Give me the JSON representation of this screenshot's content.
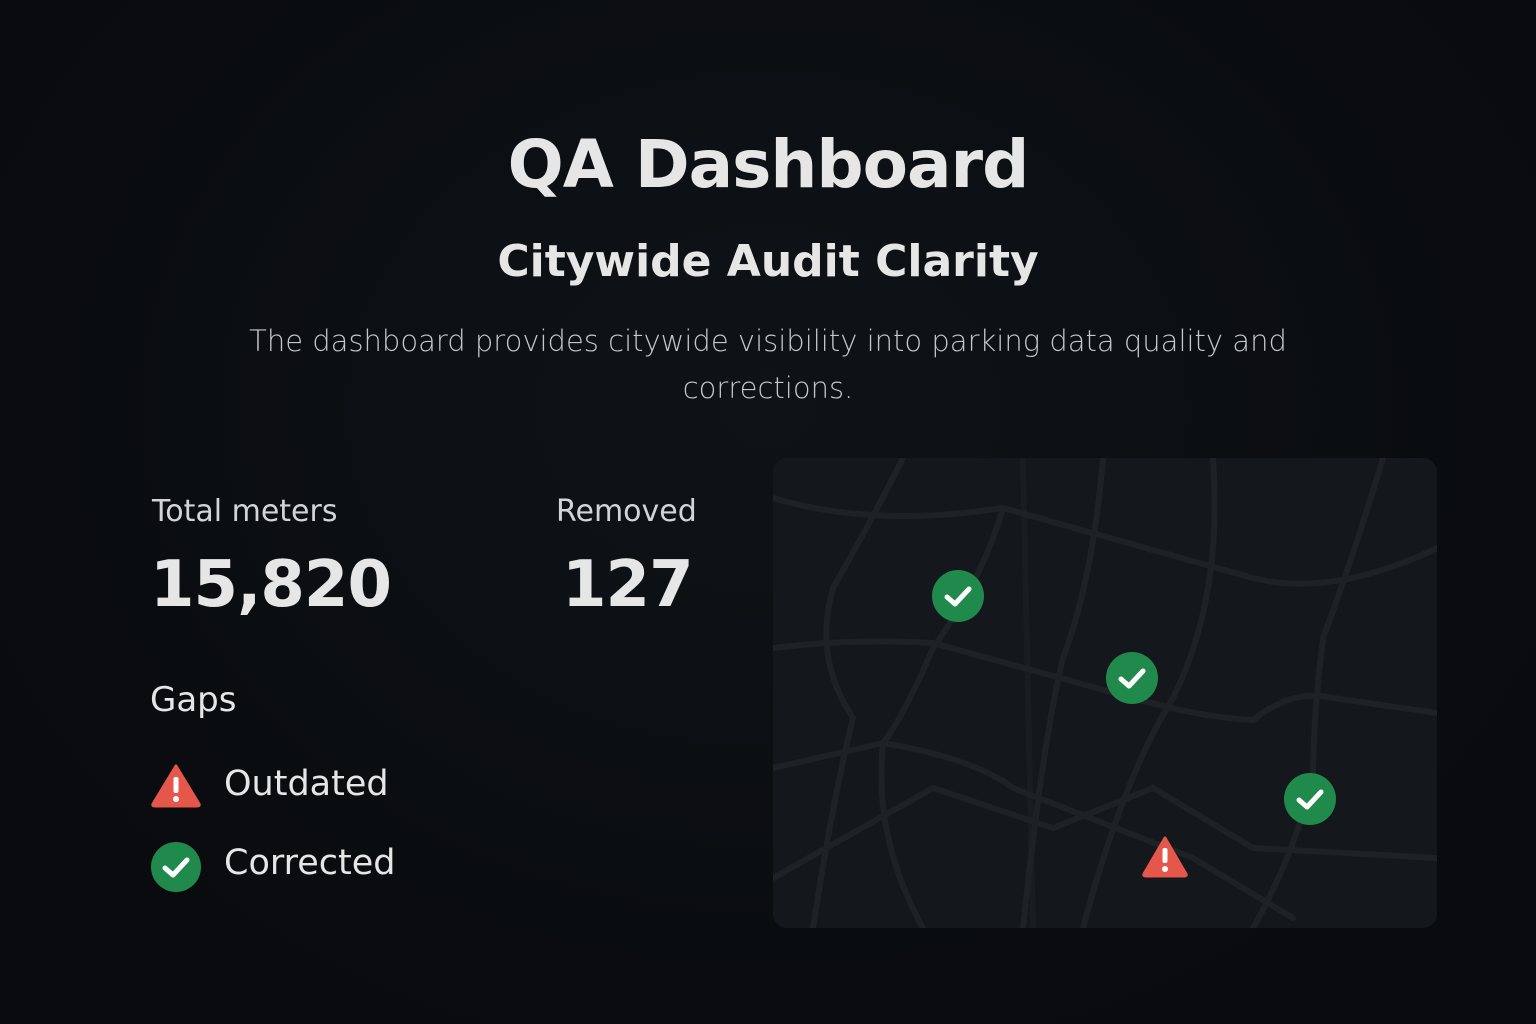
{
  "header": {
    "title": "QA Dashboard",
    "subtitle": "Citywide Audit Clarity",
    "description": "The dashboard provides citywide visibility into parking data quality and corrections."
  },
  "stats": [
    {
      "label": "Total meters",
      "value": "15,820"
    },
    {
      "label": "Removed",
      "value": "127"
    }
  ],
  "gaps": {
    "title": "Gaps",
    "items": [
      {
        "label": "Outdated"
      },
      {
        "label": "Corrected"
      }
    ]
  }
}
